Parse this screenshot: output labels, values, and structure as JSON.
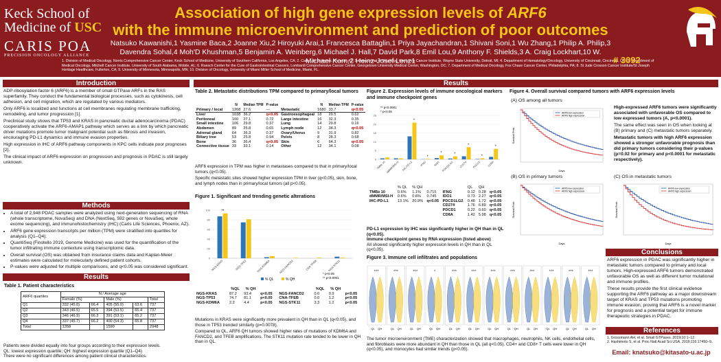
{
  "header": {
    "school_line1": "Keck School of",
    "school_line2a": "Medicine of ",
    "school_usc": "USC",
    "caris": "CARIS POA",
    "caris_sub": "PRECISION ONCOLOGY ALLIANCE",
    "title_a": "Association of high gene expression levels of ",
    "title_gene": "ARF6",
    "title_b": "with the immune microenvironment and prediction of poor outcomes",
    "authors": "Natsuko Kawanishi,1 Yasmine Baca,2 Joanne Xiu,2 Hiroyuki Arai,1 Francesca Battaglin,1 Priya Jayachandran,1 Shivani Soni,1 Wu Zhang,1 Philip A. Philip,3 Davendra Sohal,4 Moh'D Khushman,5 Benjamin A. Weinberg,6 Michael J. Hall,7 David Park,8 Emil Lou,9 Anthony F. Shields,3 A. Craig Lockhart,10 W. Michael Korn,2 Heinz-Josef Lenz1",
    "affiliations": "1. Division of Medical Oncology, Norris Comprehensive Cancer Center, Keck School of Medicine, University of Southern California, Los Angeles, CA; 2. Caris Life Sciences, Phoenix, AZ; 3. Department of Oncology, Karmanos Cancer Institute, Wayne State University, Detroit, MI; 4. Department of Hematology/Oncology, University of Cincinnati, Cincinnati, OH; 5. Department of Medical Oncology, Mitchell Cancer Institute, University of South Alabama, Mobile, AL; 6. Ruesch Center for the Cure of Gastrointestinal Cancers, Lombardi Comprehensive Cancer Center, Georgetown University Medical Center, Washington, DC; 7. Department of Medical Oncology, Fox Chase Cancer Center, Philadelphia, PA; 8. St Jude Crosson Cancer Institute/St Joseph Heritage Healthcare, Fullerton, CA; 9. University of Minnesota, Minneapolis, MN; 10. Division of Oncology, University of Miami Miller School of Medicine, Miami, FL.",
    "poster_number": "# 3092"
  },
  "intro": {
    "heading": "Introduction",
    "p1": "ADP-ribosylation factor 6 (ARF6) is a member of small GTPase ARFs in the RAS superfamily. They conduct the fundamental biological processes, such as cytokinesis, cell adhesion, and cell migration, which are regulated by various mediators.",
    "p2": "Only ARF6 is localized and functions at cell membranes regulating membrane trafficking, remodeling, and tumor progression [1].",
    "p3": "Preclinical study shows that TP53 and KRAS in pancreatic ductal adenocarcinoma (PDAC) cooperatively activate the ARF6-AMAP1 pathway which serves as a link by which pancreatic driver mutations promote tumor malignant potential such as fibrosis and invasion, encouraging PD-L1 dynamics and immune evasion properties.",
    "p4": "High expression in IHC of ARF6 pathway components in KPC cells indicate poor prognoses [2].",
    "p5": "The clinical impact of ARF6 expression on progression and prognosis in PDAC is still largely unknown."
  },
  "methods": {
    "heading": "Methods",
    "items": [
      "A total of 2,948 PDAC samples were analyzed using next-generation sequencing of RNA (whole transcriptome, NovaSeq) and DNA (NextSeq, 592 genes or NovaSeq, whole exome sequencing), and immunohistochemistry (IHC) (Caris Life Sciences, Phoenix, AZ).",
      "ARF6 gene expression transcripts per million (TPM) were stratified into quartiles for analysis (Q1–Q4).",
      "QuantiSeq (Finotello 2019, Genome Medicine) was used for the quantification of the tumor infiltrating immune contexture using transcriptomic data.",
      "Overall survival (OS) was obtained from insurance claims data and Kaplan-Meier estimates were calculated for molecularly defined patient cohorts.",
      "P-values were adjusted for multiple comparisons, and q<0.05 was considered significant."
    ]
  },
  "results_left": {
    "heading": "Results",
    "table1_title": "Table 1. Patient characteristics",
    "t1_head": [
      "ARF6 quartiles",
      "N / Average age",
      "",
      ""
    ],
    "t1_sub": [
      "",
      "Female (%)",
      "Male (%)",
      "Total"
    ],
    "t1_rows": [
      [
        "Q1",
        "332 (45.0)",
        "66.4",
        "405 (55.0)",
        "63.6",
        "737"
      ],
      [
        "Q2",
        "343 (46.5)",
        "65.5",
        "394 (53.5)",
        "65.4",
        "737"
      ],
      [
        "Q3",
        "346 (46.9)",
        "66.3",
        "391 (53.1)",
        "65.2",
        "737"
      ],
      [
        "Q4",
        "337 (45.7)",
        "66.2",
        "400 (54.3)",
        "65.8",
        "737"
      ],
      [
        "Total",
        "1358",
        "",
        "1590",
        "",
        "2948"
      ]
    ],
    "note1": "Patients were divided equally into four groups according to their expression levels.",
    "note2": "QL: lowest expression quartile; QH: highest expression quartile (Q1–Q4)",
    "note3": "There were no significant differences among patient clinical characteristics."
  },
  "results_heading": "Results",
  "table2": {
    "title": "Table 2. Metastatic distributions TPM compared to primary/local tumors",
    "cols": [
      "",
      "N",
      "Median TPM",
      "P-value",
      "",
      "N",
      "Median TPM",
      "P-value"
    ],
    "rows": [
      [
        "Primary / local",
        "1268",
        "27.6",
        "—",
        "Metastatic",
        "1680",
        "33.7",
        "q<0.05"
      ],
      [
        "Liver",
        "1038",
        "36.2",
        "q<0.05",
        "Gastroesophageal",
        "18",
        "29.5",
        "0.62"
      ],
      [
        "Peritoneal",
        "160",
        "27.1",
        "0.72",
        "Large intestine",
        "16",
        "32.3",
        "0.35"
      ],
      [
        "Small intestine",
        "106",
        "29.8",
        "0.37",
        "Lung",
        "14",
        "29.8",
        "0.16"
      ],
      [
        "Abdomen",
        "89",
        "25.8",
        "0.65",
        "Lymph node",
        "12",
        "34.3",
        "q<0.05"
      ],
      [
        "Adrenal gland",
        "64",
        "36.3",
        "0.37",
        "Ovary/Uterus",
        "9",
        "31.9",
        "0.82"
      ],
      [
        "Biliary tree",
        "53",
        "25.8",
        "0.94",
        "Pelvis",
        "8",
        "28.3",
        "0.68"
      ],
      [
        "Bone",
        "36",
        "36.4",
        "q<0.05",
        "Skin",
        "6",
        "64.3",
        "q<0.05"
      ],
      [
        "Connective tissue",
        "33",
        "33.1",
        "0.14",
        "Other",
        "12",
        "34.1",
        "0.08"
      ]
    ],
    "caption1": "ARF6 expression in TPM was higher in metastases compared to that in primary/local tumors (q<0.05).",
    "caption2": "Specific metastatic sites showed higher expression TPM in liver (q<0.05), skin, bone, and lymph nodes than in primary/local tumors (all p<0.05)."
  },
  "fig1": {
    "title": "Figure 1. Significant and trending genetic alterations",
    "legend": [
      "% QL",
      "% QH"
    ],
    "pnote": [
      "* p<0.05",
      "** p<0.0001"
    ],
    "table_head": [
      "",
      "%QL",
      "% QH",
      "",
      "",
      "%QL",
      "% QH",
      ""
    ],
    "table_rows": [
      [
        "NGS-KRAS",
        "87.2",
        "93.4",
        "q<0.05",
        "NGS-FANCD2",
        "0.0",
        "0.9",
        "p<0.05"
      ],
      [
        "NGS-TP53",
        "74.7",
        "81.1",
        "p<0.05",
        "CNA-TFEB",
        "0.0",
        "1.2",
        "p<0.05"
      ],
      [
        "NGS-KDM6A",
        "2.2",
        "4.4",
        "p<0.05",
        "NGS-STK11",
        "3.3",
        "1.2",
        "p<0.05"
      ]
    ],
    "caption1": "Mutations in KRAS were significantly more prevalent in QH than in QL (q<0.05), and those in TP53 trended similarly (p=0.0078).",
    "caption2": "Compared to QL, ARF6 QH tumors showed higher rates of mutations of KDM6A and FANCD2, and TFEB amplifications. The STK11 mutation rate tended to be lower in QH than in QL."
  },
  "fig2": {
    "title": "Figure 2. Expression levels of immune oncological markers and immune checkpoint genes",
    "pnote": [
      "** p<0.0001",
      "* p<0.05"
    ],
    "legend": [
      "% QL",
      "QH (%)",
      "QL",
      "QH"
    ],
    "table_rows": [
      [
        "TMB≥ 10",
        "0.6%",
        "1.1%",
        "0.715",
        "IFNG",
        "0.12",
        "0.28",
        "q<0.05"
      ],
      [
        "dMMR/MSI-H",
        "0.6%",
        "0.6%",
        "0.745",
        "IDO1",
        "0.73",
        "2.27",
        "q<0.05"
      ],
      [
        "IHC-PD-L1",
        "13.1%",
        "20.9%",
        "q<0.05",
        "PDCD1LG2",
        "0.48",
        "1.72",
        "q<0.05"
      ],
      [
        "",
        "",
        "",
        "",
        "CD274",
        "1.76",
        "6.89",
        "q<0.05"
      ],
      [
        "",
        "",
        "",
        "",
        "PDCD1",
        "0.22",
        "0.60",
        "q<0.05"
      ],
      [
        "",
        "",
        "",
        "",
        "CD8A",
        "1.42",
        "5.98",
        "q<0.05"
      ]
    ],
    "caption1": "PD-L1 expression by IHC was significantly higher in QH than in QL (q<0.05).",
    "caption2": "Immune checkpoint genes by RNA expression (listed above)",
    "caption3": "All showed significantly higher expression levels in QH than in QL (q<0.05)."
  },
  "fig3": {
    "title": "Figure 3. Immune cell infiltrates and populations",
    "caption": "The tumor microenvironment (TME) characterization showed that macrophages, neutrophils, NK cells, endothelial cells, and fibroblasts were more abundant in QH than those in QL (all q<0.05). CD4+ and CD8+ T cells were lower in QH (q<0.05), and monocytes had similar trends (p<0.05)."
  },
  "fig4": {
    "title": "Figure 4. Overall survival compared tumors with ARF6 expression levels",
    "a_label": "(A) OS among all tumors",
    "b_label": "(B) OS in primary tumors",
    "c_label": "(C) OS in metastatic tumors",
    "text1": "High-expressed ARF6 tumors were significantly associated with unfavorable OS compared to low expressed tumors (A, p<0.0001).",
    "text2": "The same effect was seen in OS when looking at (B) primary and (C) metastatic tumors separately.",
    "text3": "Metastatic tumors with high ARF6 expression showed a stronger unfavorable prognosis than did primary tumors considering their p-values (p=0.02 for primary and p<0.0001 for metastatic respectively).",
    "legend_low": "ARF6 low expression",
    "legend_high": "ARF6 high expression",
    "xlabel": "Days",
    "ylabel": "Survival Prob."
  },
  "conclusions": {
    "heading": "Conclusions",
    "p1": "ARF6 expression in PDAC was significantly higher in metastatic tumors compared to primary and local tumors. High-expressed ARF6 tumors demonstrated unfavorable OS as well as different tumor mutational and immune profiles.",
    "p2": "These results provide the first clinical evidence supporting the ARF6 pathway as a major downstream target of KRAS and TP53 mutations promoting immune evasion, proving that ARF6 is a novel marker for prognosis and a potential target for immune therapeutic strategies in PDAC."
  },
  "references": {
    "heading": "References",
    "r1": "1. Grossmann AH, et al. Small GTPases. 2019;10:1–12.",
    "r2": "2. Hashimoto S, et al. Proc Natl Acad Sci USA. 2019;116:17450–9."
  },
  "email": "Email: knatsuko@kitasato-u.ac.jp",
  "colors": {
    "brand": "#8a1b1f",
    "gold": "#f4c419",
    "ql": "#2e75b6",
    "qh": "#f5c518",
    "km_low": "#1f4ea8",
    "km_high": "#d93030"
  }
}
